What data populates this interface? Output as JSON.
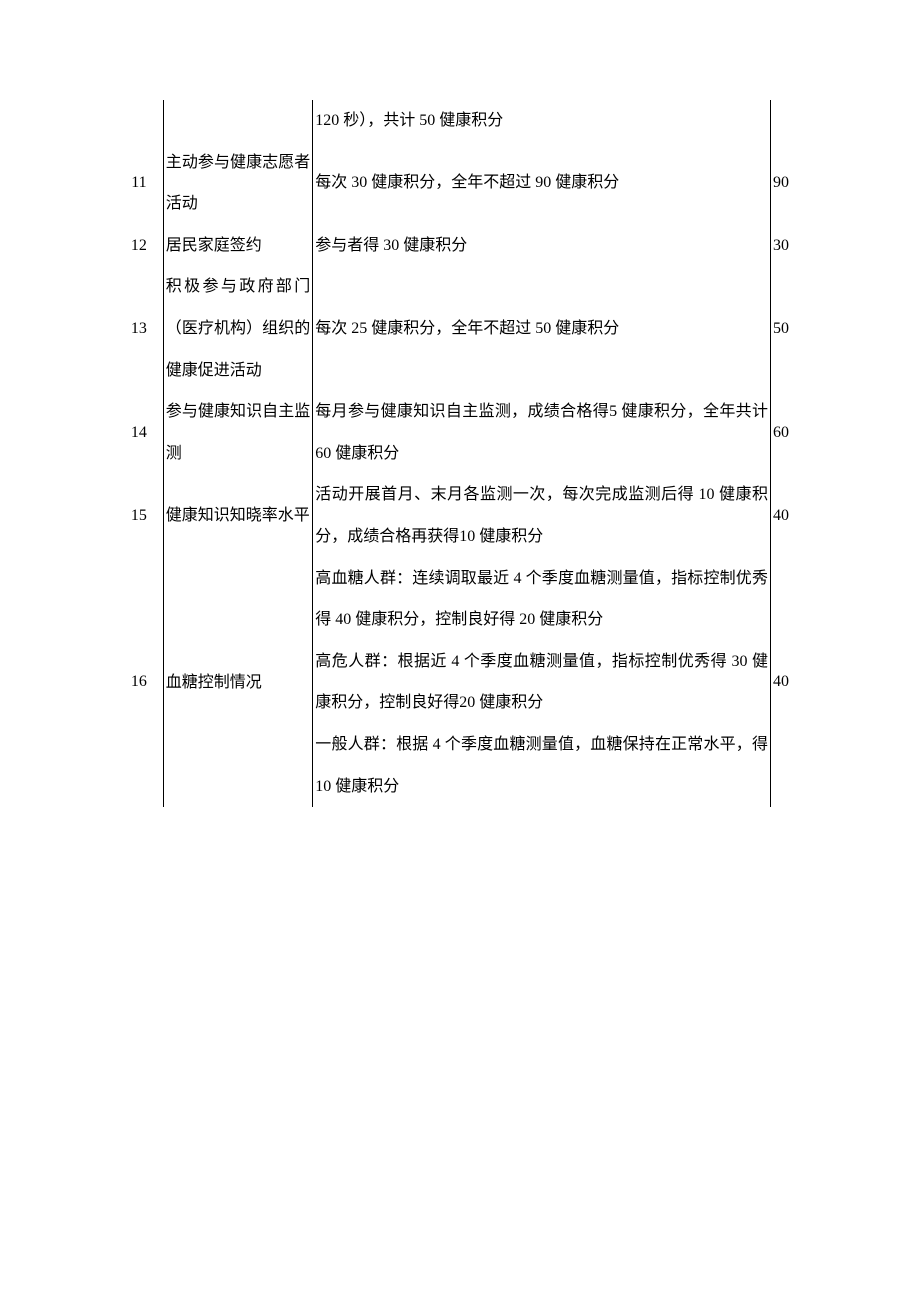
{
  "table": {
    "rows": [
      {
        "num": "",
        "name": "",
        "desc": "120 秒），共计 50 健康积分",
        "score": "",
        "partial": true
      },
      {
        "num": "11",
        "name": "主动参与健康志愿者活动",
        "desc": "每次 30 健康积分，全年不超过 90 健康积分",
        "score": "90"
      },
      {
        "num": "12",
        "name": "居民家庭签约",
        "desc": "参与者得 30 健康积分",
        "score": "30"
      },
      {
        "num": "13",
        "name": "积极参与政府部门（医疗机构）组织的健康促进活动",
        "desc": "每次 25 健康积分，全年不超过 50 健康积分",
        "score": "50"
      },
      {
        "num": "14",
        "name": "参与健康知识自主监测",
        "desc": "每月参与健康知识自主监测，成绩合格得5 健康积分，全年共计 60 健康积分",
        "score": "60"
      },
      {
        "num": "15",
        "name": "健康知识知晓率水平",
        "desc": "活动开展首月、末月各监测一次，每次完成监测后得 10 健康积分，成绩合格再获得10 健康积分",
        "score": "40"
      },
      {
        "num": "16",
        "name": "血糖控制情况",
        "desc": "高血糖人群：连续调取最近 4 个季度血糖测量值，指标控制优秀得 40 健康积分，控制良好得 20 健康积分\n高危人群：根据近 4 个季度血糖测量值，指标控制优秀得 30 健康积分，控制良好得20 健康积分\n一般人群：根据 4 个季度血糖测量值，血糖保持在正常水平，得 10 健康积分",
        "score": "40"
      }
    ],
    "columns": {
      "num_width": 42,
      "name_width": 130,
      "desc_width": 398,
      "score_width": 30
    },
    "styling": {
      "font_size": 16,
      "line_height": 2.6,
      "border_color": "#000000",
      "background_color": "#ffffff",
      "text_color": "#000000",
      "font_family": "SimSun"
    }
  }
}
